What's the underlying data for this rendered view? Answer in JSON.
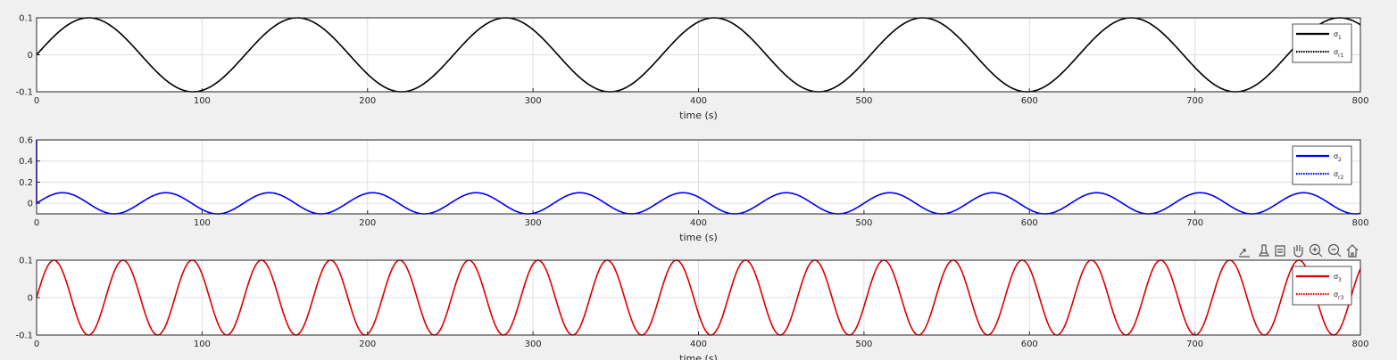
{
  "chart_data": [
    {
      "type": "line",
      "xlabel": "time (s)",
      "xlim": [
        0,
        800
      ],
      "ylim": [
        -0.1,
        0.1
      ],
      "xticks": [
        "0",
        "100",
        "200",
        "300",
        "400",
        "500",
        "600",
        "700",
        "800"
      ],
      "yticks": [
        "-0.1",
        "0",
        "0.1"
      ],
      "grid": true,
      "legend_position": "top-right",
      "line_color": "#000000",
      "series": [
        {
          "name": "σ",
          "sub": "1",
          "style": "solid",
          "amplitude": 0.1,
          "period": 126,
          "x": [
            0,
            800
          ]
        },
        {
          "name": "σ",
          "sub": "r1",
          "style": "dotted",
          "amplitude": 0.1,
          "period": 126,
          "x": [
            0,
            800
          ]
        }
      ]
    },
    {
      "type": "line",
      "xlabel": "time (s)",
      "xlim": [
        0,
        800
      ],
      "ylim": [
        -0.1,
        0.6
      ],
      "xticks": [
        "0",
        "100",
        "200",
        "300",
        "400",
        "500",
        "600",
        "700",
        "800"
      ],
      "yticks": [
        "0",
        "0.2",
        "0.4",
        "0.6"
      ],
      "grid": true,
      "legend_position": "top-right",
      "line_color": "#0000ff",
      "initial_spike": 0.6,
      "series": [
        {
          "name": "σ",
          "sub": "2",
          "style": "solid",
          "amplitude": 0.1,
          "period": 62.5,
          "x": [
            0,
            800
          ]
        },
        {
          "name": "σ",
          "sub": "r2",
          "style": "dotted",
          "amplitude": 0.1,
          "period": 62.5,
          "x": [
            0,
            800
          ]
        }
      ]
    },
    {
      "type": "line",
      "xlabel": "time (s)",
      "xlim": [
        0,
        800
      ],
      "ylim": [
        -0.1,
        0.1
      ],
      "xticks": [
        "0",
        "100",
        "200",
        "300",
        "400",
        "500",
        "600",
        "700",
        "800"
      ],
      "yticks": [
        "-0.1",
        "0",
        "0.1"
      ],
      "grid": true,
      "legend_position": "top-right",
      "line_color": "#e00000",
      "series": [
        {
          "name": "σ",
          "sub": "3",
          "style": "solid",
          "amplitude": 0.1,
          "period": 41.8,
          "x": [
            0,
            800
          ]
        },
        {
          "name": "σ",
          "sub": "r3",
          "style": "dotted",
          "amplitude": 0.1,
          "period": 41.8,
          "x": [
            0,
            800
          ]
        }
      ]
    }
  ],
  "toolbar": {
    "icons": [
      "export-icon",
      "brush-icon",
      "datatip-icon",
      "pan-icon",
      "zoom-in-icon",
      "zoom-out-icon",
      "home-icon"
    ]
  }
}
